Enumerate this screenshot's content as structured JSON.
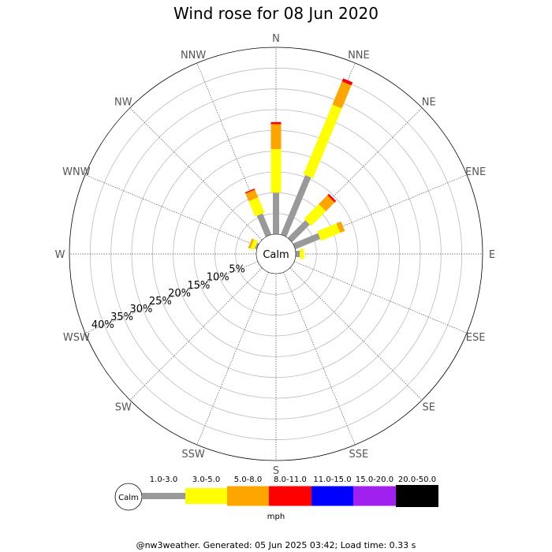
{
  "chart_data": {
    "type": "polar-bar",
    "title": "Wind rose for 08 Jun 2020",
    "center_label": "Calm",
    "directions": [
      "N",
      "NNE",
      "NE",
      "ENE",
      "E",
      "ESE",
      "SE",
      "SSE",
      "S",
      "SSW",
      "SW",
      "WSW",
      "W",
      "WNW",
      "NW",
      "NNW"
    ],
    "ring_labels": [
      "5%",
      "10%",
      "15%",
      "20%",
      "25%",
      "30%",
      "35%",
      "40%"
    ],
    "rings_percent": [
      5,
      10,
      15,
      20,
      25,
      30,
      35,
      40
    ],
    "r_max_percent": 45,
    "speed_bins": [
      "1.0-3.0",
      "3.0-5.0",
      "5.0-8.0",
      "8.0-11.0",
      "11.0-15.0",
      "15.0-20.0",
      "20.0-50.0"
    ],
    "bin_colors": [
      "#999999",
      "#ffff00",
      "#ffa500",
      "#ff0000",
      "#0000ff",
      "#a020f0",
      "#000000"
    ],
    "unit": "mph",
    "values": [
      [
        10.0,
        10.5,
        6.0,
        0.5,
        0,
        0,
        0
      ],
      [
        15.5,
        18.2,
        6.0,
        0.8,
        0,
        0,
        0
      ],
      [
        6.0,
        5.0,
        3.0,
        0.5,
        0,
        0,
        0
      ],
      [
        6.5,
        5.0,
        1.2,
        0,
        0,
        0,
        0
      ],
      [
        1.0,
        1.0,
        0,
        0,
        0,
        0,
        0
      ],
      [
        0,
        0,
        0,
        0,
        0,
        0,
        0
      ],
      [
        0,
        0,
        0,
        0,
        0,
        0,
        0
      ],
      [
        0,
        0,
        0,
        0,
        0,
        0,
        0
      ],
      [
        0,
        0,
        0,
        0,
        0,
        0,
        0
      ],
      [
        0,
        0,
        0,
        0,
        0,
        0,
        0
      ],
      [
        0,
        0,
        0,
        0,
        0,
        0,
        0
      ],
      [
        0,
        0,
        0,
        0,
        0,
        0,
        0
      ],
      [
        0,
        0,
        0,
        0,
        0,
        0,
        0
      ],
      [
        0.5,
        1.0,
        0.5,
        0,
        0,
        0,
        0
      ],
      [
        0,
        0,
        0,
        0,
        0,
        0,
        0
      ],
      [
        5.5,
        4.0,
        2.0,
        0.3,
        0,
        0,
        0
      ]
    ],
    "grid": true
  },
  "footer": "@nw3weather. Generated: 05 Jun 2025 03:42; Load time: 0.33 s"
}
